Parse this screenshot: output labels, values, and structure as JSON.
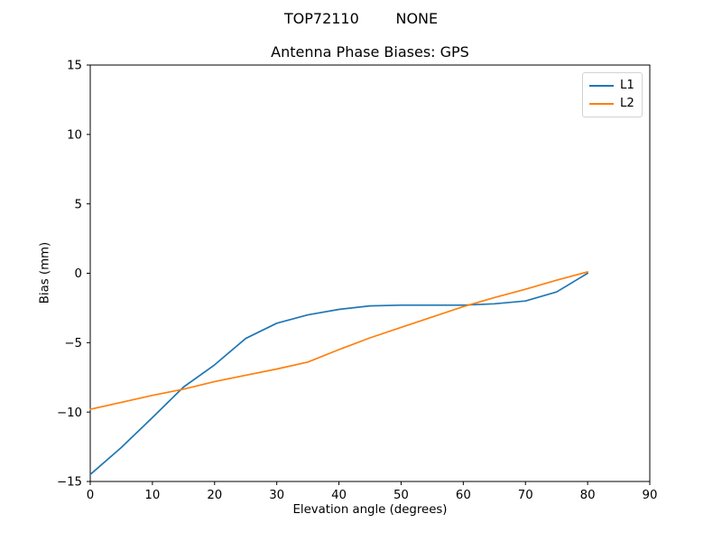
{
  "suptitle": "TOP72110        NONE",
  "chart_data": {
    "type": "line",
    "title": "Antenna Phase Biases: GPS",
    "xlabel": "Elevation angle (degrees)",
    "ylabel": "Bias (mm)",
    "xlim": [
      0,
      90
    ],
    "ylim": [
      -15,
      15
    ],
    "xticks": [
      0,
      10,
      20,
      30,
      40,
      50,
      60,
      70,
      80,
      90
    ],
    "yticks": [
      -15,
      -10,
      -5,
      0,
      5,
      10,
      15
    ],
    "grid": false,
    "legend_position": "upper right",
    "x": [
      0,
      5,
      10,
      15,
      20,
      25,
      30,
      35,
      40,
      45,
      50,
      55,
      60,
      65,
      70,
      75,
      80
    ],
    "series": [
      {
        "name": "L1",
        "color": "#1f77b4",
        "values": [
          -14.5,
          -12.55,
          -10.4,
          -8.2,
          -6.6,
          -4.7,
          -3.6,
          -3.0,
          -2.6,
          -2.35,
          -2.3,
          -2.3,
          -2.3,
          -2.2,
          -2.0,
          -1.35,
          0.0
        ]
      },
      {
        "name": "L2",
        "color": "#ff7f0e",
        "values": [
          -9.8,
          -9.3,
          -8.8,
          -8.35,
          -7.8,
          -7.35,
          -6.9,
          -6.4,
          -5.5,
          -4.65,
          -3.9,
          -3.15,
          -2.4,
          -1.75,
          -1.15,
          -0.5,
          0.1
        ]
      }
    ],
    "colors": {
      "axes": "#000000",
      "text": "#000000",
      "background": "#ffffff"
    }
  }
}
